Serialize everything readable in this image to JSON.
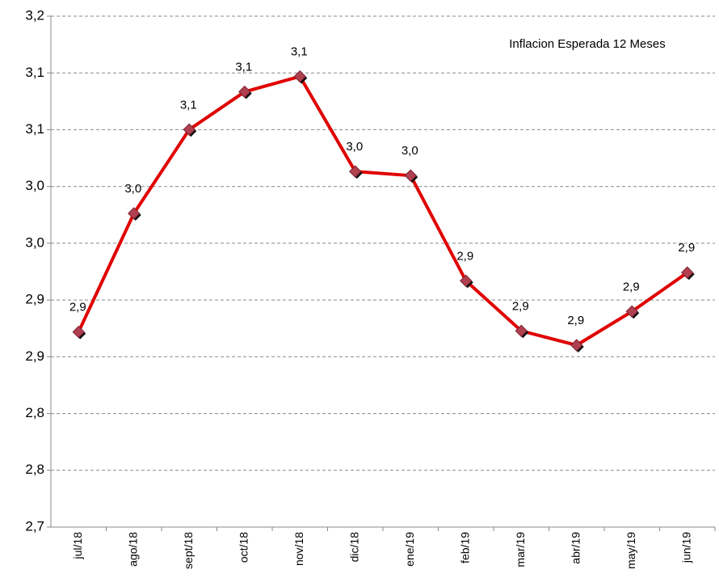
{
  "chart_data": {
    "type": "line",
    "categories": [
      "jul/18",
      "ago/18",
      "sept/18",
      "oct/18",
      "nov/18",
      "dic/18",
      "ene/19",
      "feb/19",
      "mar/19",
      "abr/19",
      "may/19",
      "jun/19"
    ],
    "series": [
      {
        "name": "Inflacion Esperada 12 Meses",
        "color": "#e00000",
        "values": [
          2.891,
          3.007,
          3.089,
          3.126,
          3.141,
          3.048,
          3.044,
          2.941,
          2.892,
          2.878,
          2.911,
          2.949
        ],
        "value_labels": [
          "2,9",
          "3,0",
          "3,1",
          "3,1",
          "3,1",
          "3,0",
          "3,0",
          "2,9",
          "2,9",
          "2,9",
          "2,9",
          "2,9"
        ]
      }
    ],
    "ylim": [
      2.7,
      3.2
    ],
    "yticks": [
      {
        "value": 2.7,
        "label": "2,7"
      },
      {
        "value": 2.7556,
        "label": "2,8"
      },
      {
        "value": 2.8111,
        "label": "2,8"
      },
      {
        "value": 2.8667,
        "label": "2,9"
      },
      {
        "value": 2.9222,
        "label": "2,9"
      },
      {
        "value": 2.9778,
        "label": "3,0"
      },
      {
        "value": 3.0333,
        "label": "3,0"
      },
      {
        "value": 3.0889,
        "label": "3,1"
      },
      {
        "value": 3.1444,
        "label": "3,1"
      },
      {
        "value": 3.2,
        "label": "3,2"
      }
    ],
    "grid": true
  }
}
